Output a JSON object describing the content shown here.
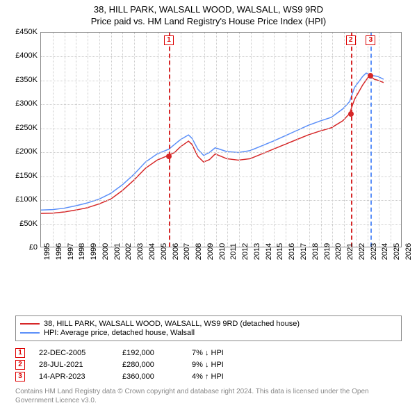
{
  "title": "38, HILL PARK, WALSALL WOOD, WALSALL, WS9 9RD",
  "subtitle": "Price paid vs. HM Land Registry's House Price Index (HPI)",
  "chart": {
    "type": "line",
    "background_color": "#ffffff",
    "grid_color": "#cccccc",
    "border_color": "#888888",
    "x": {
      "min": 1995,
      "max": 2026,
      "ticks": [
        1995,
        1996,
        1997,
        1998,
        1999,
        2000,
        2001,
        2002,
        2003,
        2004,
        2005,
        2006,
        2007,
        2008,
        2009,
        2010,
        2011,
        2012,
        2013,
        2014,
        2015,
        2016,
        2017,
        2018,
        2019,
        2020,
        2021,
        2022,
        2023,
        2024,
        2025,
        2026
      ],
      "label_fontsize": 11,
      "rotation": 90
    },
    "y": {
      "min": 0,
      "max": 450000,
      "ticks": [
        0,
        50000,
        100000,
        150000,
        200000,
        250000,
        300000,
        350000,
        400000,
        450000
      ],
      "tick_labels": [
        "£0",
        "£50K",
        "£100K",
        "£150K",
        "£200K",
        "£250K",
        "£300K",
        "£350K",
        "£400K",
        "£450K"
      ],
      "label_fontsize": 11
    },
    "series": [
      {
        "id": "prop",
        "name": "38, HILL PARK, WALSALL WOOD, WALSALL, WS9 9RD (detached house)",
        "color": "#d62728",
        "line_width": 1.5,
        "data": [
          [
            1995,
            70000
          ],
          [
            1996,
            70500
          ],
          [
            1997,
            73000
          ],
          [
            1998,
            77000
          ],
          [
            1999,
            82000
          ],
          [
            2000,
            90000
          ],
          [
            2001,
            100000
          ],
          [
            2002,
            118000
          ],
          [
            2003,
            140000
          ],
          [
            2004,
            165000
          ],
          [
            2005,
            182000
          ],
          [
            2005.97,
            192000
          ],
          [
            2006.5,
            198000
          ],
          [
            2007,
            210000
          ],
          [
            2007.7,
            222000
          ],
          [
            2008,
            215000
          ],
          [
            2008.5,
            190000
          ],
          [
            2009,
            178000
          ],
          [
            2009.5,
            183000
          ],
          [
            2010,
            195000
          ],
          [
            2010.5,
            190000
          ],
          [
            2011,
            185000
          ],
          [
            2012,
            182000
          ],
          [
            2013,
            185000
          ],
          [
            2014,
            195000
          ],
          [
            2015,
            205000
          ],
          [
            2016,
            215000
          ],
          [
            2017,
            225000
          ],
          [
            2018,
            235000
          ],
          [
            2019,
            243000
          ],
          [
            2020,
            250000
          ],
          [
            2021,
            265000
          ],
          [
            2021.57,
            280000
          ],
          [
            2022,
            310000
          ],
          [
            2022.7,
            340000
          ],
          [
            2023.28,
            360000
          ],
          [
            2023.7,
            352000
          ],
          [
            2024,
            350000
          ],
          [
            2024.5,
            345000
          ]
        ]
      },
      {
        "id": "hpi",
        "name": "HPI: Average price, detached house, Walsall",
        "color": "#5b8ff9",
        "line_width": 1.5,
        "data": [
          [
            1995,
            77000
          ],
          [
            1996,
            78000
          ],
          [
            1997,
            81000
          ],
          [
            1998,
            86000
          ],
          [
            1999,
            92000
          ],
          [
            2000,
            100000
          ],
          [
            2001,
            112000
          ],
          [
            2002,
            130000
          ],
          [
            2003,
            152000
          ],
          [
            2004,
            178000
          ],
          [
            2005,
            195000
          ],
          [
            2006,
            205000
          ],
          [
            2007,
            225000
          ],
          [
            2007.7,
            235000
          ],
          [
            2008,
            228000
          ],
          [
            2008.5,
            205000
          ],
          [
            2009,
            192000
          ],
          [
            2009.5,
            198000
          ],
          [
            2010,
            208000
          ],
          [
            2010.5,
            204000
          ],
          [
            2011,
            200000
          ],
          [
            2012,
            198000
          ],
          [
            2013,
            202000
          ],
          [
            2014,
            212000
          ],
          [
            2015,
            222000
          ],
          [
            2016,
            233000
          ],
          [
            2017,
            244000
          ],
          [
            2018,
            255000
          ],
          [
            2019,
            264000
          ],
          [
            2020,
            272000
          ],
          [
            2021,
            290000
          ],
          [
            2021.57,
            305000
          ],
          [
            2022,
            335000
          ],
          [
            2022.7,
            358000
          ],
          [
            2023,
            365000
          ],
          [
            2023.5,
            360000
          ],
          [
            2024,
            358000
          ],
          [
            2024.5,
            352000
          ]
        ]
      }
    ],
    "events": [
      {
        "n": "1",
        "x": 2005.97,
        "dash_color": "#d62728",
        "date": "22-DEC-2005",
        "price": "£192,000",
        "diff": "7% ↓ HPI",
        "point_y": 192000,
        "point_color": "#d62728"
      },
      {
        "n": "2",
        "x": 2021.57,
        "dash_color": "#d62728",
        "date": "28-JUL-2021",
        "price": "£280,000",
        "diff": "9% ↓ HPI",
        "point_y": 280000,
        "point_color": "#d62728"
      },
      {
        "n": "3",
        "x": 2023.28,
        "dash_color": "#5b8ff9",
        "date": "14-APR-2023",
        "price": "£360,000",
        "diff": "4% ↑ HPI",
        "point_y": 360000,
        "point_color": "#d62728"
      }
    ]
  },
  "legend": {
    "border_color": "#888888",
    "fontsize": 11
  },
  "footnote": "Contains HM Land Registry data © Crown copyright and database right 2024. This data is licensed under the Open Government Licence v3.0."
}
